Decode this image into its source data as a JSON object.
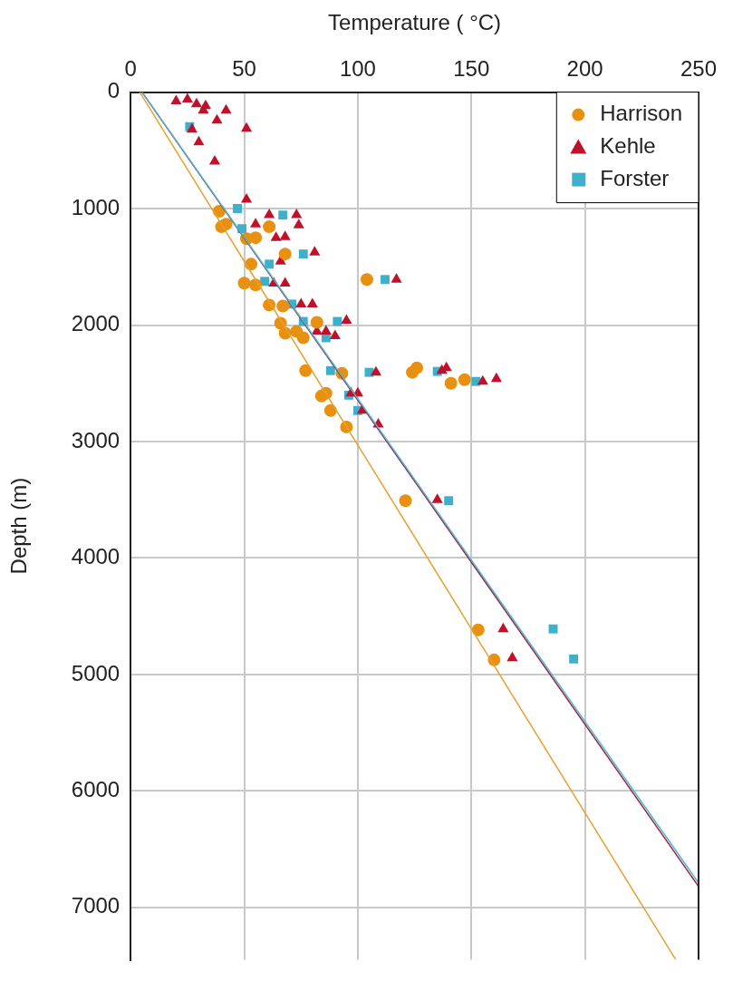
{
  "chart_data": {
    "type": "scatter",
    "xlabel": "Temperature ( °C)",
    "ylabel": "Depth (m)",
    "xlim": [
      0,
      250
    ],
    "xticks": [
      0,
      50,
      100,
      150,
      200,
      250
    ],
    "ylim": [
      7450,
      0
    ],
    "yticks": [
      0,
      1000,
      2000,
      3000,
      4000,
      5000,
      6000,
      7000
    ],
    "grid": true,
    "legend": "top right",
    "series": [
      {
        "name": "Harrison",
        "type": "scatter",
        "marker": "circle",
        "color": "#e8900f",
        "x": [
          39,
          42,
          40,
          61,
          51,
          55,
          68,
          53,
          50,
          55,
          104,
          61,
          67,
          66,
          68,
          73,
          76,
          82,
          77,
          93,
          124,
          126,
          84,
          86,
          88,
          95,
          141,
          147,
          121,
          153,
          160
        ],
        "values": [
          1023,
          1133,
          1156,
          1156,
          1258,
          1250,
          1390,
          1477,
          1640,
          1656,
          1609,
          1828,
          1836,
          1984,
          2070,
          2055,
          2109,
          1977,
          2391,
          2414,
          2406,
          2367,
          2609,
          2586,
          2734,
          2875,
          2500,
          2469,
          3508,
          4617,
          4875
        ]
      },
      {
        "name": "Kehle",
        "type": "scatter",
        "marker": "triangle",
        "color": "#c0102a",
        "x": [
          20,
          25,
          29,
          33,
          32,
          42,
          38,
          51,
          27,
          30,
          37,
          51,
          61,
          73,
          55,
          74,
          64,
          68,
          81,
          66,
          63,
          68,
          117,
          75,
          80,
          95,
          82,
          86,
          90,
          108,
          97,
          100,
          102,
          109,
          139,
          137,
          155,
          161,
          135,
          164,
          168
        ],
        "values": [
          78,
          62,
          102,
          117,
          156,
          156,
          242,
          312,
          320,
          430,
          594,
          922,
          1055,
          1055,
          1133,
          1141,
          1250,
          1242,
          1375,
          1453,
          1641,
          1641,
          1609,
          1820,
          1820,
          1961,
          2055,
          2055,
          2094,
          2406,
          2586,
          2586,
          2734,
          2852,
          2367,
          2391,
          2484,
          2461,
          3500,
          4609,
          4859
        ]
      },
      {
        "name": "Forster",
        "type": "scatter",
        "marker": "square",
        "color": "#3fb0cc",
        "x": [
          26,
          47,
          49,
          67,
          76,
          61,
          59,
          112,
          71,
          76,
          91,
          86,
          88,
          105,
          96,
          100,
          135,
          152,
          140,
          186,
          195
        ],
        "values": [
          297,
          1000,
          1172,
          1055,
          1390,
          1477,
          1625,
          1609,
          1820,
          1969,
          1969,
          2109,
          2391,
          2406,
          2602,
          2734,
          2398,
          2484,
          3508,
          4609,
          4867
        ]
      },
      {
        "type": "line",
        "marker": "none",
        "color": "#e8a030",
        "x": [
          4,
          240
        ],
        "values": [
          0,
          7450
        ]
      },
      {
        "type": "line",
        "marker": "none",
        "color": "#4ab8d0",
        "x": [
          5,
          250
        ],
        "values": [
          0,
          6790
        ]
      },
      {
        "type": "line",
        "marker": "none",
        "color": "#a0203f",
        "x": [
          5,
          250
        ],
        "values": [
          0,
          6820
        ]
      }
    ]
  }
}
